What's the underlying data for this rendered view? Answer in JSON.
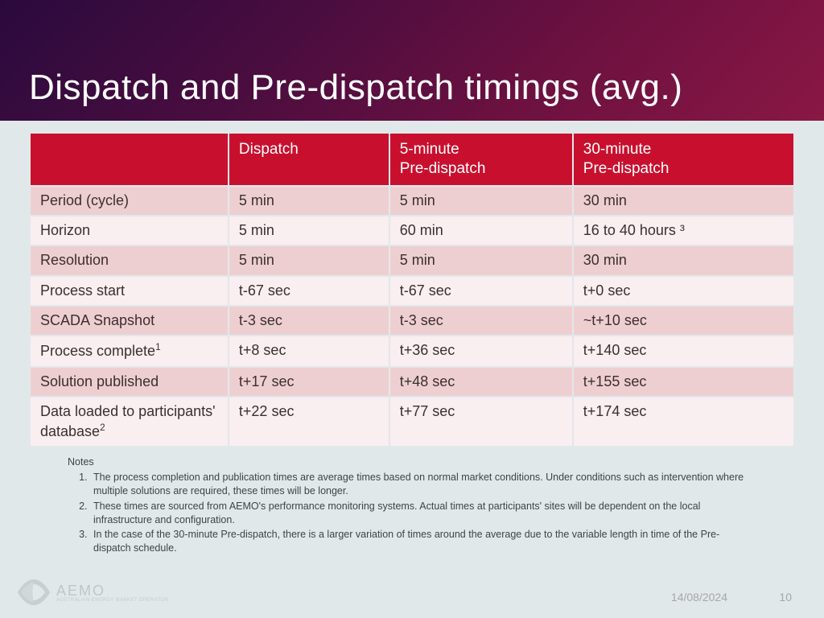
{
  "slide": {
    "title": "Dispatch and Pre-dispatch timings (avg.)",
    "date": "14/08/2024",
    "page_number": "10",
    "background_color": "#e1e8ea",
    "header_gradient": [
      "#2a0a3e",
      "#4a0d3f",
      "#6b1140",
      "#8a1744"
    ]
  },
  "table": {
    "type": "table",
    "header_bg": "#c8102e",
    "header_fg": "#ffffff",
    "row_odd_bg": "#eecfd1",
    "row_even_bg": "#f9eef0",
    "cell_fg": "#3b2f2f",
    "column_widths_pct": [
      26,
      21,
      24,
      29
    ],
    "header_fontsize": 19,
    "cell_fontsize": 18,
    "columns": [
      "",
      "Dispatch",
      "5-minute\nPre-dispatch",
      "30-minute\nPre-dispatch"
    ],
    "rows": [
      {
        "label": "Period (cycle)",
        "sup": "",
        "cells": [
          "5 min",
          "5 min",
          "30 min"
        ]
      },
      {
        "label": "Horizon",
        "sup": "",
        "cells": [
          "5 min",
          "60 min",
          "16 to 40 hours ³"
        ]
      },
      {
        "label": "Resolution",
        "sup": "",
        "cells": [
          "5 min",
          "5 min",
          "30 min"
        ]
      },
      {
        "label": "Process start",
        "sup": "",
        "cells": [
          "t-67 sec",
          "t-67 sec",
          "t+0 sec"
        ]
      },
      {
        "label": "SCADA Snapshot",
        "sup": "",
        "cells": [
          "t-3 sec",
          "t-3 sec",
          "~t+10 sec"
        ]
      },
      {
        "label": "Process complete",
        "sup": "1",
        "cells": [
          "t+8 sec",
          "t+36 sec",
          "t+140 sec"
        ]
      },
      {
        "label": "Solution published",
        "sup": "",
        "cells": [
          "t+17 sec",
          "t+48 sec",
          "t+155 sec"
        ]
      },
      {
        "label": "Data loaded to participants' database",
        "sup": "2",
        "cells": [
          "t+22 sec",
          "t+77 sec",
          "t+174 sec"
        ]
      }
    ]
  },
  "notes": {
    "title": "Notes",
    "fontsize": 12.5,
    "color": "#3f4446",
    "items": [
      "The process completion and publication times are average times based on normal market conditions. Under conditions such as intervention where multiple solutions are required, these times will be longer.",
      "These times are sourced from AEMO's performance monitoring systems. Actual times at participants' sites will be dependent on the local infrastructure and configuration.",
      "In the case of the 30-minute Pre-dispatch, there is a larger variation of times around the average due to the variable length in time of the Pre-dispatch schedule."
    ]
  },
  "logo": {
    "text": "AEMO",
    "subtext": "AUSTRALIAN ENERGY MARKET OPERATOR",
    "mark_color": "#8a9294"
  }
}
